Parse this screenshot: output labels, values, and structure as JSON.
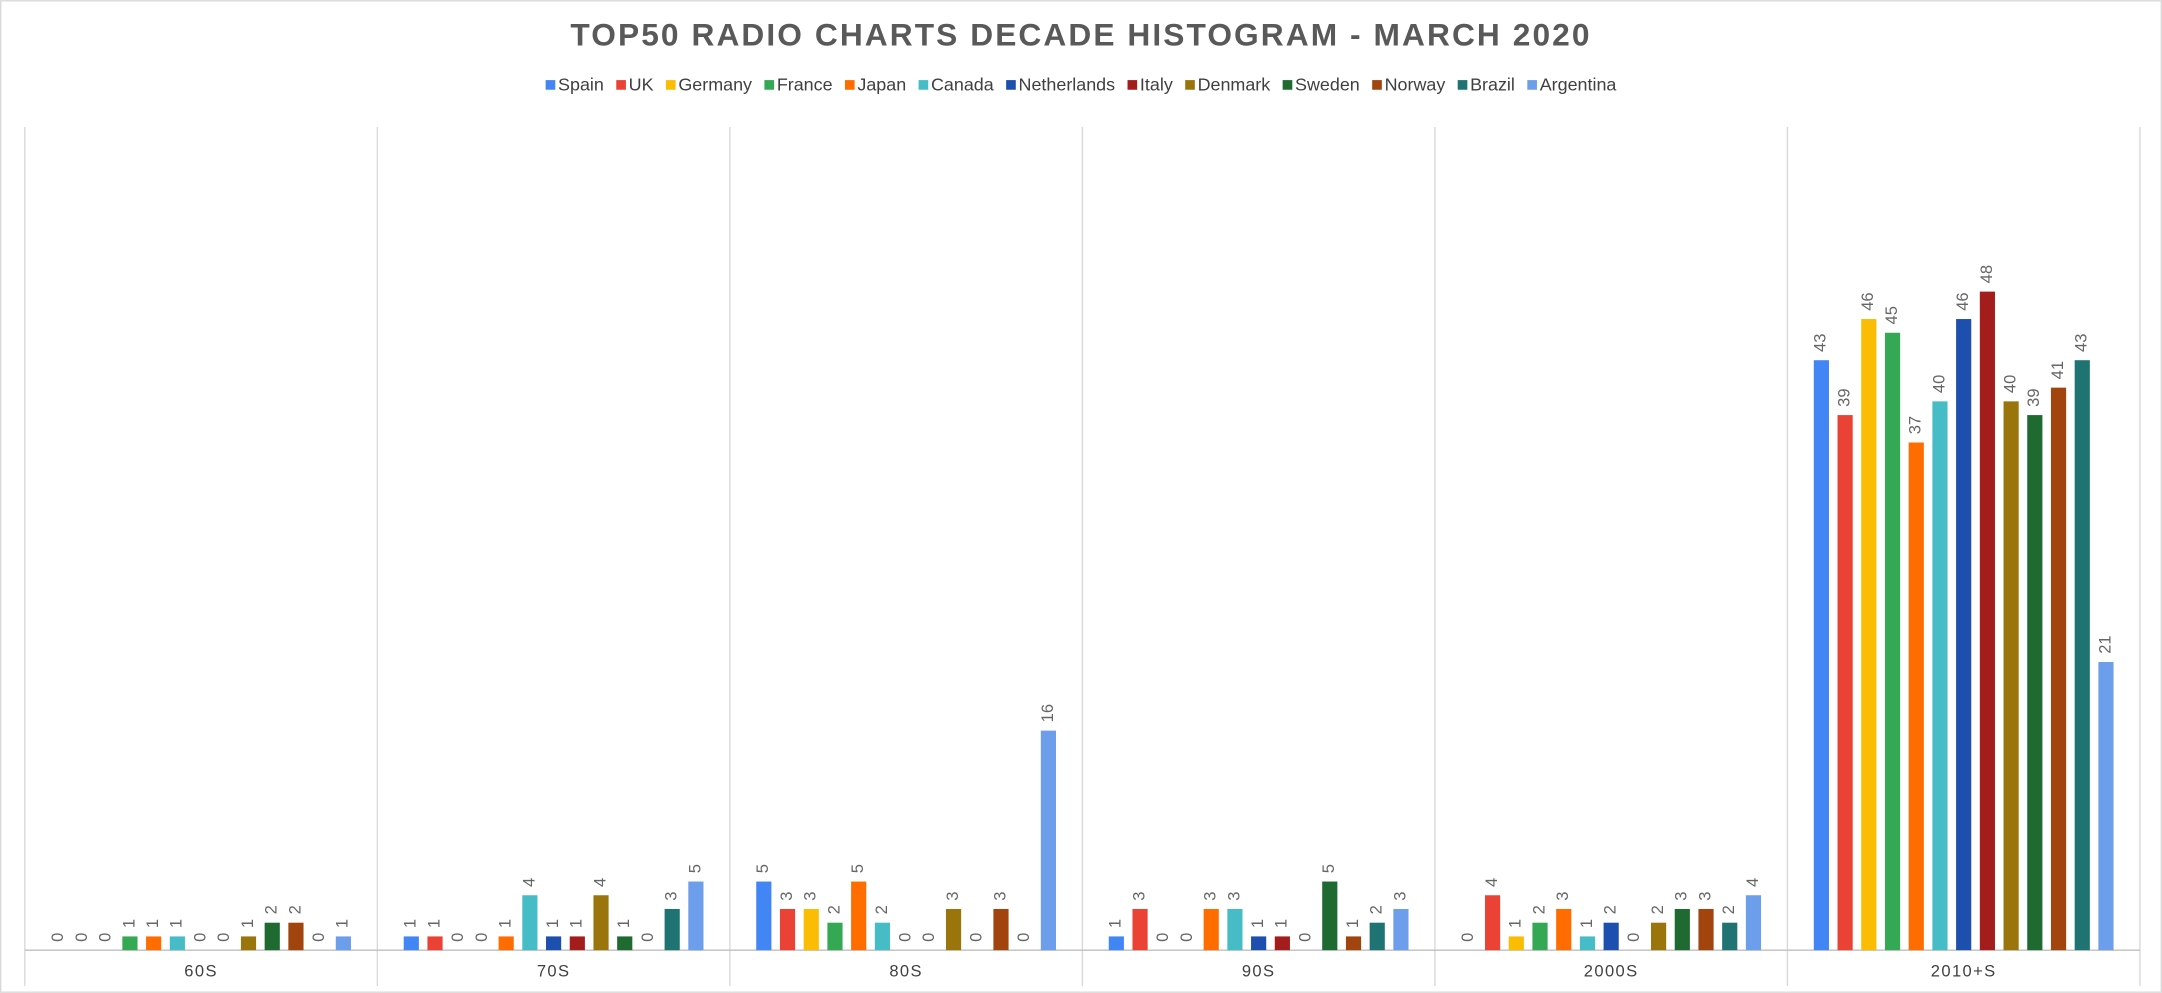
{
  "chart_data": {
    "type": "bar",
    "title": "TOP50 RADIO CHARTS DECADE HISTOGRAM - MARCH 2020",
    "categories": [
      "60S",
      "70S",
      "80S",
      "90S",
      "2000S",
      "2010+S"
    ],
    "series": [
      {
        "name": "Spain",
        "color": "#4285f4",
        "values": [
          0,
          1,
          5,
          1,
          0,
          43
        ]
      },
      {
        "name": "UK",
        "color": "#ea4335",
        "values": [
          0,
          1,
          3,
          3,
          4,
          39
        ]
      },
      {
        "name": "Germany",
        "color": "#fbbc04",
        "values": [
          0,
          0,
          3,
          0,
          1,
          46
        ]
      },
      {
        "name": "France",
        "color": "#34a853",
        "values": [
          1,
          0,
          2,
          0,
          2,
          45
        ]
      },
      {
        "name": "Japan",
        "color": "#ff6d01",
        "values": [
          1,
          1,
          5,
          3,
          3,
          37
        ]
      },
      {
        "name": "Canada",
        "color": "#46bdc6",
        "values": [
          1,
          4,
          2,
          3,
          1,
          40
        ]
      },
      {
        "name": "Netherlands",
        "color": "#1c4fae",
        "values": [
          0,
          1,
          0,
          1,
          2,
          46
        ]
      },
      {
        "name": "Italy",
        "color": "#a31d1d",
        "values": [
          0,
          1,
          0,
          1,
          0,
          48
        ]
      },
      {
        "name": "Denmark",
        "color": "#9a750c",
        "values": [
          1,
          4,
          3,
          0,
          2,
          40
        ]
      },
      {
        "name": "Sweden",
        "color": "#1e6a31",
        "values": [
          2,
          1,
          0,
          5,
          3,
          39
        ]
      },
      {
        "name": "Norway",
        "color": "#a1440d",
        "values": [
          2,
          0,
          3,
          1,
          3,
          41
        ]
      },
      {
        "name": "Brazil",
        "color": "#1f7373",
        "values": [
          0,
          3,
          0,
          2,
          2,
          43
        ]
      },
      {
        "name": "Argentina",
        "color": "#6d9eeb",
        "values": [
          1,
          5,
          16,
          3,
          4,
          21
        ]
      }
    ],
    "ylim": [
      0,
      60
    ]
  }
}
